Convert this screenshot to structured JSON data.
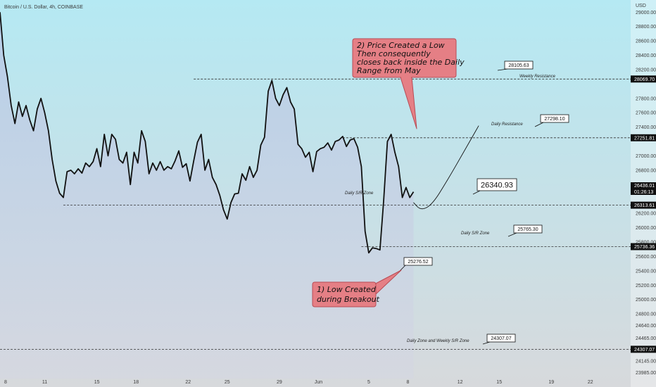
{
  "header": {
    "symbol_label": "Bitcoin / U.S. Dollar, 4h, COINBASE"
  },
  "currency": "USD",
  "colors": {
    "bg_top": "#b5e9f3",
    "bg_bottom": "#d7d9dc",
    "price_line": "#111111",
    "area_top": "#b7c9e6",
    "area_bottom": "#d4d6e2",
    "callout_fill": "#e57f85",
    "callout_stroke": "#b84b55",
    "axis_tag_bg": "#111111",
    "axis_tag_text": "#ffffff"
  },
  "chart_data": {
    "type": "line",
    "ylim": [
      23900,
      29150
    ],
    "yticks": [
      {
        "label": "29000.00",
        "value": 29000
      },
      {
        "label": "28800.00",
        "value": 28800
      },
      {
        "label": "28600.00",
        "value": 28600
      },
      {
        "label": "28400.00",
        "value": 28400
      },
      {
        "label": "28200.00",
        "value": 28200
      },
      {
        "label": "27800.00",
        "value": 27800
      },
      {
        "label": "27600.00",
        "value": 27600
      },
      {
        "label": "27400.00",
        "value": 27400
      },
      {
        "label": "27000.00",
        "value": 27000
      },
      {
        "label": "26800.00",
        "value": 26800
      },
      {
        "label": "26600.00",
        "value": 26600
      },
      {
        "label": "26200.00",
        "value": 26200
      },
      {
        "label": "26000.00",
        "value": 26000
      },
      {
        "label": "25800.00",
        "value": 25800
      },
      {
        "label": "25600.00",
        "value": 25600
      },
      {
        "label": "25400.00",
        "value": 25400
      },
      {
        "label": "25200.00",
        "value": 25200
      },
      {
        "label": "25000.00",
        "value": 25000
      },
      {
        "label": "24800.00",
        "value": 24800
      },
      {
        "label": "24640.00",
        "value": 24640
      },
      {
        "label": "24465.00",
        "value": 24465
      },
      {
        "label": "24145.00",
        "value": 24145
      },
      {
        "label": "23985.00",
        "value": 23985
      }
    ],
    "xticks": [
      {
        "label": "8",
        "t": 1.5
      },
      {
        "label": "11",
        "t": 12
      },
      {
        "label": "15",
        "t": 26
      },
      {
        "label": "18",
        "t": 36.5
      },
      {
        "label": "22",
        "t": 50.5
      },
      {
        "label": "25",
        "t": 61
      },
      {
        "label": "29",
        "t": 75
      },
      {
        "label": "Jun",
        "t": 85.5
      },
      {
        "label": "5",
        "t": 99
      },
      {
        "label": "8",
        "t": 109.5
      },
      {
        "label": "12",
        "t": 123.5
      },
      {
        "label": "15",
        "t": 134
      },
      {
        "label": "19",
        "t": 148
      },
      {
        "label": "22",
        "t": 158.5
      }
    ],
    "xmax": 169.3,
    "price": [
      [
        0,
        29000
      ],
      [
        1,
        28400
      ],
      [
        2,
        28100
      ],
      [
        3,
        27700
      ],
      [
        4,
        27450
      ],
      [
        5,
        27750
      ],
      [
        6,
        27550
      ],
      [
        7,
        27700
      ],
      [
        8,
        27500
      ],
      [
        9,
        27350
      ],
      [
        10,
        27650
      ],
      [
        11,
        27800
      ],
      [
        12,
        27600
      ],
      [
        13,
        27350
      ],
      [
        14,
        26950
      ],
      [
        15,
        26650
      ],
      [
        16,
        26480
      ],
      [
        17,
        26420
      ],
      [
        18,
        26780
      ],
      [
        19,
        26800
      ],
      [
        20,
        26750
      ],
      [
        21,
        26820
      ],
      [
        22,
        26760
      ],
      [
        23,
        26900
      ],
      [
        24,
        26850
      ],
      [
        25,
        26920
      ],
      [
        26,
        27100
      ],
      [
        27,
        26850
      ],
      [
        28,
        27300
      ],
      [
        29,
        27000
      ],
      [
        30,
        27300
      ],
      [
        31,
        27230
      ],
      [
        32,
        26950
      ],
      [
        33,
        26900
      ],
      [
        34,
        27050
      ],
      [
        35,
        26600
      ],
      [
        36,
        27050
      ],
      [
        37,
        26900
      ],
      [
        38,
        27350
      ],
      [
        39,
        27200
      ],
      [
        40,
        26750
      ],
      [
        41,
        26900
      ],
      [
        42,
        26800
      ],
      [
        43,
        26920
      ],
      [
        44,
        26800
      ],
      [
        45,
        26850
      ],
      [
        46,
        26820
      ],
      [
        47,
        26930
      ],
      [
        48,
        27070
      ],
      [
        49,
        26840
      ],
      [
        50,
        26890
      ],
      [
        51,
        26650
      ],
      [
        52,
        26930
      ],
      [
        53,
        27190
      ],
      [
        54,
        27300
      ],
      [
        55,
        26800
      ],
      [
        56,
        26950
      ],
      [
        57,
        26700
      ],
      [
        58,
        26600
      ],
      [
        59,
        26450
      ],
      [
        60,
        26250
      ],
      [
        61,
        26120
      ],
      [
        62,
        26350
      ],
      [
        63,
        26470
      ],
      [
        64,
        26480
      ],
      [
        65,
        26750
      ],
      [
        66,
        26660
      ],
      [
        67,
        26850
      ],
      [
        68,
        26700
      ],
      [
        69,
        26800
      ],
      [
        70,
        27150
      ],
      [
        71,
        27260
      ],
      [
        72,
        27900
      ],
      [
        73,
        28050
      ],
      [
        74,
        27800
      ],
      [
        75,
        27700
      ],
      [
        76,
        27850
      ],
      [
        77,
        27950
      ],
      [
        78,
        27750
      ],
      [
        79,
        27650
      ],
      [
        80,
        27160
      ],
      [
        81,
        27100
      ],
      [
        82,
        26980
      ],
      [
        83,
        27050
      ],
      [
        84,
        26780
      ],
      [
        85,
        27060
      ],
      [
        86,
        27100
      ],
      [
        87,
        27120
      ],
      [
        88,
        27180
      ],
      [
        89,
        27080
      ],
      [
        90,
        27200
      ],
      [
        91,
        27220
      ],
      [
        92,
        27270
      ],
      [
        93,
        27130
      ],
      [
        94,
        27220
      ],
      [
        95,
        27240
      ],
      [
        96,
        27120
      ],
      [
        97,
        26850
      ],
      [
        98,
        25950
      ],
      [
        99,
        25650
      ],
      [
        100,
        25720
      ],
      [
        101,
        25710
      ],
      [
        102,
        25690
      ],
      [
        103,
        26380
      ],
      [
        104,
        27200
      ],
      [
        105,
        27300
      ],
      [
        106,
        27050
      ],
      [
        107,
        26850
      ],
      [
        108,
        26420
      ],
      [
        109,
        26560
      ],
      [
        110,
        26420
      ],
      [
        111,
        26500
      ]
    ],
    "projection": [
      [
        111,
        26350
      ],
      [
        113,
        26240
      ],
      [
        116,
        26320
      ],
      [
        120,
        26650
      ],
      [
        125,
        27100
      ],
      [
        128.5,
        27420
      ]
    ],
    "levels": [
      {
        "value": 28069.7,
        "axis_label": "28069.70",
        "tag": "28105.63",
        "label": "Weekly Resistance",
        "t_start": 52
      },
      {
        "value": 27251.81,
        "axis_label": "27251.81",
        "tag": "27298.10",
        "label": "Daily Resistance",
        "t_start": 92
      },
      {
        "value": 26313.61,
        "axis_label": "26313.61",
        "tag": "26340.93",
        "label": "Daily S/R Zone",
        "t_start": 17
      },
      {
        "value": 25736.36,
        "axis_label": "25736.36",
        "tag": "25765.30",
        "label": "Daily S/R Zone",
        "t_start": 97
      },
      {
        "value": 24307.07,
        "axis_label": "24307.07",
        "tag": "24307.07",
        "label": "Daily Zone and Weekly S/R Zone",
        "t_start": 0
      }
    ],
    "current_price": {
      "value": "26436.01",
      "countdown": "01:26:13"
    },
    "point_tag": "25276.52",
    "callouts": [
      {
        "text": [
          "2) Price Created a Low",
          "Then consequently",
          "closes back inside the Daily",
          "Range from May"
        ]
      },
      {
        "text": [
          "1) Low Created",
          "during Breakout"
        ]
      }
    ]
  }
}
